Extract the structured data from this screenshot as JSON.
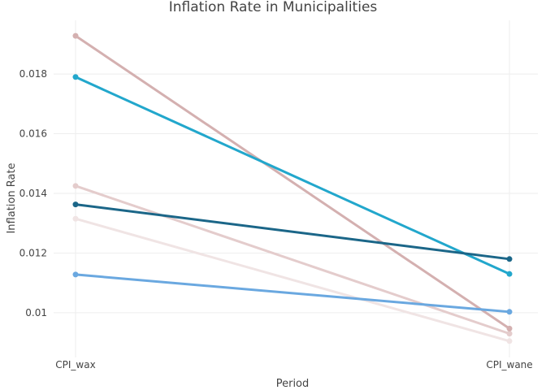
{
  "chart_data": {
    "type": "line",
    "title": "Inflation Rate in Municipalities",
    "xlabel": "Period",
    "ylabel": "Inflation Rate",
    "categories": [
      "CPI_wax",
      "CPI_wane"
    ],
    "ylim": [
      0.0085,
      0.0198
    ],
    "yticks": [
      0.01,
      0.012,
      0.014,
      0.016,
      0.018
    ],
    "ytick_labels": [
      "0.01",
      "0.012",
      "0.014",
      "0.016",
      "0.018"
    ],
    "grid": true,
    "legend": "none",
    "series": [
      {
        "values": [
          0.01315,
          0.00905
        ],
        "color": "#f0e4e4"
      },
      {
        "values": [
          0.01425,
          0.0093
        ],
        "color": "#e4cccc"
      },
      {
        "values": [
          0.01928,
          0.00947
        ],
        "color": "#d4b0b0"
      },
      {
        "values": [
          0.01128,
          0.01003
        ],
        "color": "#6aa8e0"
      },
      {
        "values": [
          0.0179,
          0.0113
        ],
        "color": "#22a7cc"
      },
      {
        "values": [
          0.01363,
          0.0118
        ],
        "color": "#1b6688"
      }
    ]
  }
}
